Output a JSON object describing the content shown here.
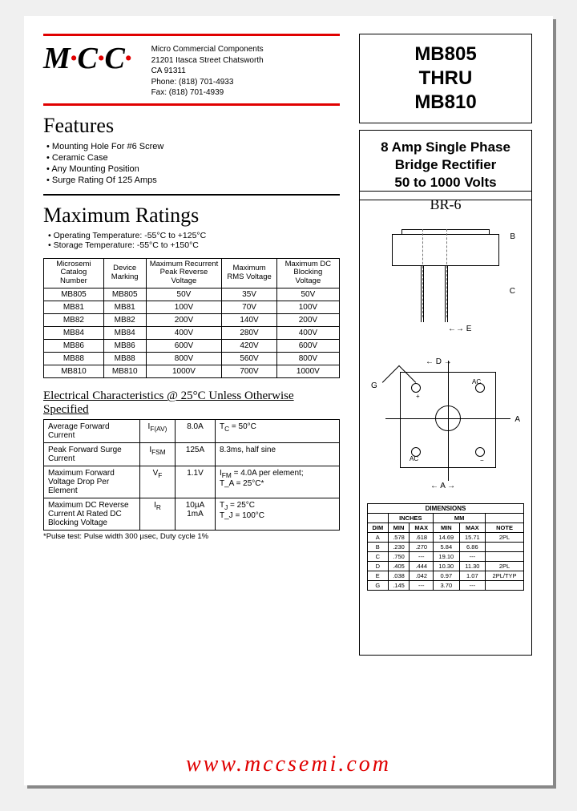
{
  "logo": {
    "text": "M·C·C·"
  },
  "address": {
    "l1": "Micro Commercial Components",
    "l2": "21201 Itasca Street Chatsworth",
    "l3": "CA 91311",
    "l4": "Phone: (818) 701-4933",
    "l5": "Fax:       (818) 701-4939"
  },
  "part_box": {
    "l1": "MB805",
    "l2": "THRU",
    "l3": "MB810"
  },
  "desc_box": {
    "l1": "8 Amp Single Phase",
    "l2": "Bridge Rectifier",
    "l3": "50 to 1000 Volts"
  },
  "features": {
    "title": "Features",
    "items": [
      "Mounting Hole For #6 Screw",
      "Ceramic Case",
      "Any Mounting Position",
      "Surge Rating Of 125 Amps"
    ]
  },
  "maxratings": {
    "title": "Maximum Ratings",
    "op": "Operating Temperature: -55°C to +125°C",
    "st": "Storage Temperature: -55°C to +150°C"
  },
  "ratings_table": {
    "headers": [
      "Microsemi Catalog Number",
      "Device Marking",
      "Maximum Recurrent Peak Reverse Voltage",
      "Maximum RMS Voltage",
      "Maximum DC Blocking Voltage"
    ],
    "rows": [
      [
        "MB805",
        "MB805",
        "50V",
        "35V",
        "50V"
      ],
      [
        "MB81",
        "MB81",
        "100V",
        "70V",
        "100V"
      ],
      [
        "MB82",
        "MB82",
        "200V",
        "140V",
        "200V"
      ],
      [
        "MB84",
        "MB84",
        "400V",
        "280V",
        "400V"
      ],
      [
        "MB86",
        "MB86",
        "600V",
        "420V",
        "600V"
      ],
      [
        "MB88",
        "MB88",
        "800V",
        "560V",
        "800V"
      ],
      [
        "MB810",
        "MB810",
        "1000V",
        "700V",
        "1000V"
      ]
    ]
  },
  "elec": {
    "title": "Electrical Characteristics @ 25°C Unless Otherwise Specified",
    "rows": [
      {
        "label": "Average Forward Current",
        "sym": "I",
        "sub": "F(AV)",
        "val": "8.0A",
        "cond": "T",
        "csub": "C",
        "ctxt": " = 50°C"
      },
      {
        "label": "Peak Forward Surge Current",
        "sym": "I",
        "sub": "FSM",
        "val": "125A",
        "cond": "8.3ms, half sine",
        "csub": "",
        "ctxt": ""
      },
      {
        "label": "Maximum Forward Voltage Drop Per Element",
        "sym": "V",
        "sub": "F",
        "val": "1.1V",
        "cond": "I",
        "csub": "FM",
        "ctxt": " = 4.0A per element;\nT_A = 25°C*"
      },
      {
        "label": "Maximum DC Reverse Current At Rated DC Blocking Voltage",
        "sym": "I",
        "sub": "R",
        "val": "10µA\n1mA",
        "cond": "T",
        "csub": "J",
        "ctxt": " = 25°C\nT_J = 100°C"
      }
    ],
    "note": "*Pulse test: Pulse width 300 µsec, Duty cycle 1%"
  },
  "diagram": {
    "title": "BR-6",
    "B": "B",
    "C": "C",
    "E": "E",
    "D": "D",
    "A": "A",
    "G": "G",
    "AC": "AC",
    "plus": "+"
  },
  "dims": {
    "title": "DIMENSIONS",
    "u1": "INCHES",
    "u2": "MM",
    "cols": [
      "DIM",
      "MIN",
      "MAX",
      "MIN",
      "MAX",
      "NOTE"
    ],
    "rows": [
      [
        "A",
        ".578",
        ".618",
        "14.69",
        "15.71",
        "2PL"
      ],
      [
        "B",
        ".230",
        ".270",
        "5.84",
        "6.86",
        ""
      ],
      [
        "C",
        ".750",
        "---",
        "19.10",
        "---",
        ""
      ],
      [
        "D",
        ".405",
        ".444",
        "10.30",
        "11.30",
        "2PL"
      ],
      [
        "E",
        ".038",
        ".042",
        "0.97",
        "1.07",
        "2PL/TYP"
      ],
      [
        "G",
        ".145",
        "---",
        "3.70",
        "---",
        ""
      ]
    ]
  },
  "url": "www.mccsemi.com"
}
